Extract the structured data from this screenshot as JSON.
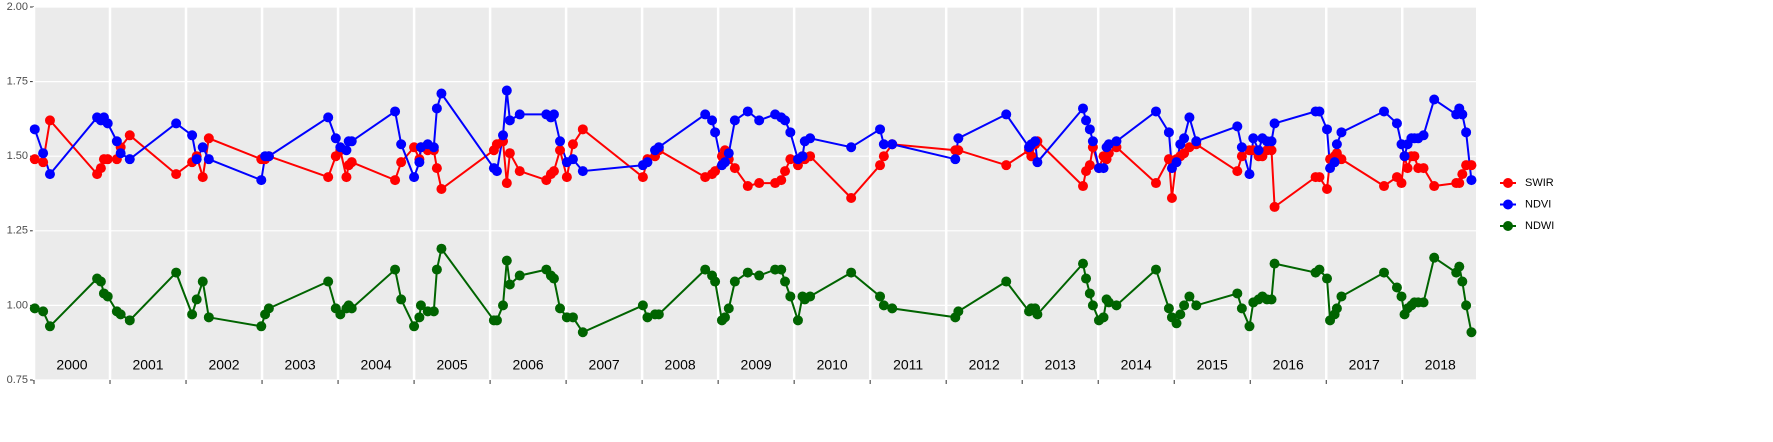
{
  "chart_data": {
    "type": "line",
    "x": [
      2000.01,
      2000.12,
      2000.21,
      2000.83,
      2000.88,
      2000.92,
      2000.97,
      2001.09,
      2001.14,
      2001.26,
      2001.87,
      2002.08,
      2002.14,
      2002.22,
      2002.3,
      2002.99,
      2003.04,
      2003.09,
      2003.87,
      2003.97,
      2004.03,
      2004.11,
      2004.14,
      2004.18,
      2004.75,
      2004.83,
      2005.0,
      2005.07,
      2005.09,
      2005.18,
      2005.26,
      2005.3,
      2005.36,
      2006.05,
      2006.09,
      2006.17,
      2006.22,
      2006.26,
      2006.39,
      2006.74,
      2006.8,
      2006.84,
      2006.92,
      2007.01,
      2007.09,
      2007.22,
      2008.01,
      2008.07,
      2008.17,
      2008.22,
      2008.83,
      2008.92,
      2008.96,
      2009.05,
      2009.09,
      2009.14,
      2009.22,
      2009.39,
      2009.54,
      2009.75,
      2009.83,
      2009.88,
      2009.95,
      2010.05,
      2010.11,
      2010.14,
      2010.21,
      2010.75,
      2011.13,
      2011.18,
      2011.29,
      2012.12,
      2012.16,
      2012.79,
      2013.09,
      2013.12,
      2013.17,
      2013.2,
      2013.8,
      2013.84,
      2013.89,
      2013.93,
      2014.01,
      2014.07,
      2014.11,
      2014.14,
      2014.24,
      2014.76,
      2014.93,
      2014.97,
      2015.03,
      2015.08,
      2015.13,
      2015.2,
      2015.29,
      2015.83,
      2015.89,
      2015.99,
      2016.04,
      2016.11,
      2016.16,
      2016.22,
      2016.28,
      2016.32,
      2016.86,
      2016.91,
      2017.01,
      2017.05,
      2017.11,
      2017.14,
      2017.2,
      2017.76,
      2017.93,
      2017.99,
      2018.03,
      2018.07,
      2018.12,
      2018.16,
      2018.21,
      2018.28,
      2018.42,
      2018.71,
      2018.75,
      2018.79,
      2018.84,
      2018.91
    ],
    "series": [
      {
        "name": "SWIR",
        "color": "#ff0000",
        "values": [
          1.49,
          1.48,
          1.62,
          1.44,
          1.46,
          1.49,
          1.49,
          1.49,
          1.53,
          1.57,
          1.44,
          1.48,
          1.5,
          1.43,
          1.56,
          1.49,
          1.49,
          1.5,
          1.43,
          1.5,
          1.52,
          1.43,
          1.47,
          1.48,
          1.42,
          1.48,
          1.53,
          1.49,
          1.53,
          1.52,
          1.52,
          1.46,
          1.39,
          1.52,
          1.54,
          1.55,
          1.41,
          1.51,
          1.45,
          1.42,
          1.44,
          1.45,
          1.52,
          1.43,
          1.54,
          1.59,
          1.43,
          1.49,
          1.5,
          1.52,
          1.43,
          1.44,
          1.45,
          1.5,
          1.52,
          1.49,
          1.46,
          1.4,
          1.41,
          1.41,
          1.42,
          1.45,
          1.49,
          1.47,
          1.5,
          1.49,
          1.5,
          1.36,
          1.47,
          1.5,
          1.54,
          1.52,
          1.52,
          1.47,
          1.52,
          1.5,
          1.54,
          1.55,
          1.4,
          1.45,
          1.47,
          1.53,
          1.46,
          1.5,
          1.49,
          1.51,
          1.53,
          1.41,
          1.49,
          1.36,
          1.49,
          1.5,
          1.51,
          1.53,
          1.54,
          1.45,
          1.5,
          1.52,
          1.52,
          1.5,
          1.5,
          1.52,
          1.52,
          1.33,
          1.43,
          1.43,
          1.39,
          1.49,
          1.5,
          1.51,
          1.49,
          1.4,
          1.43,
          1.41,
          1.5,
          1.46,
          1.5,
          1.5,
          1.46,
          1.46,
          1.4,
          1.41,
          1.41,
          1.44,
          1.47,
          1.47
        ]
      },
      {
        "name": "NDVI",
        "color": "#0000ff",
        "values": [
          1.59,
          1.51,
          1.44,
          1.63,
          1.62,
          1.63,
          1.61,
          1.55,
          1.51,
          1.49,
          1.61,
          1.57,
          1.49,
          1.53,
          1.49,
          1.42,
          1.5,
          1.5,
          1.63,
          1.56,
          1.53,
          1.52,
          1.55,
          1.55,
          1.65,
          1.54,
          1.43,
          1.48,
          1.53,
          1.54,
          1.53,
          1.66,
          1.71,
          1.46,
          1.45,
          1.57,
          1.72,
          1.62,
          1.64,
          1.64,
          1.63,
          1.64,
          1.55,
          1.48,
          1.49,
          1.45,
          1.47,
          1.48,
          1.52,
          1.53,
          1.64,
          1.62,
          1.58,
          1.47,
          1.48,
          1.51,
          1.62,
          1.65,
          1.62,
          1.64,
          1.63,
          1.62,
          1.58,
          1.49,
          1.5,
          1.55,
          1.56,
          1.53,
          1.59,
          1.54,
          1.54,
          1.49,
          1.56,
          1.64,
          1.53,
          1.54,
          1.55,
          1.48,
          1.66,
          1.62,
          1.59,
          1.55,
          1.46,
          1.46,
          1.53,
          1.54,
          1.55,
          1.65,
          1.58,
          1.46,
          1.48,
          1.54,
          1.56,
          1.63,
          1.55,
          1.6,
          1.53,
          1.44,
          1.56,
          1.52,
          1.56,
          1.55,
          1.55,
          1.61,
          1.65,
          1.65,
          1.59,
          1.46,
          1.48,
          1.54,
          1.58,
          1.65,
          1.61,
          1.54,
          1.5,
          1.54,
          1.56,
          1.56,
          1.56,
          1.57,
          1.69,
          1.64,
          1.66,
          1.64,
          1.58,
          1.42
        ]
      },
      {
        "name": "NDWI",
        "color": "#006400",
        "values": [
          0.99,
          0.98,
          0.93,
          1.09,
          1.08,
          1.04,
          1.03,
          0.98,
          0.97,
          0.95,
          1.11,
          0.97,
          1.02,
          1.08,
          0.96,
          0.93,
          0.97,
          0.99,
          1.08,
          0.99,
          0.97,
          0.99,
          1.0,
          0.99,
          1.12,
          1.02,
          0.93,
          0.96,
          1.0,
          0.98,
          0.98,
          1.12,
          1.19,
          0.95,
          0.95,
          1.0,
          1.15,
          1.07,
          1.1,
          1.12,
          1.1,
          1.09,
          0.99,
          0.96,
          0.96,
          0.91,
          1.0,
          0.96,
          0.97,
          0.97,
          1.12,
          1.1,
          1.08,
          0.95,
          0.96,
          0.99,
          1.08,
          1.11,
          1.1,
          1.12,
          1.12,
          1.08,
          1.03,
          0.95,
          1.03,
          1.02,
          1.03,
          1.11,
          1.03,
          1.0,
          0.99,
          0.96,
          0.98,
          1.08,
          0.98,
          0.99,
          0.99,
          0.97,
          1.14,
          1.09,
          1.04,
          1.0,
          0.95,
          0.96,
          1.02,
          1.01,
          1.0,
          1.12,
          0.99,
          0.96,
          0.94,
          0.97,
          1.0,
          1.03,
          1.0,
          1.04,
          0.99,
          0.93,
          1.01,
          1.02,
          1.03,
          1.02,
          1.02,
          1.14,
          1.11,
          1.12,
          1.09,
          0.95,
          0.97,
          0.99,
          1.03,
          1.11,
          1.06,
          1.03,
          0.97,
          0.99,
          1.0,
          1.01,
          1.01,
          1.01,
          1.16,
          1.11,
          1.13,
          1.08,
          1.0,
          0.91
        ]
      }
    ],
    "xlim": [
      2000,
      2018.97
    ],
    "xticks": [
      2000,
      2001,
      2002,
      2003,
      2004,
      2005,
      2006,
      2007,
      2008,
      2009,
      2010,
      2011,
      2012,
      2013,
      2014,
      2015,
      2016,
      2017,
      2018
    ],
    "ylim": [
      0.75,
      2.0
    ],
    "yticks": [
      0.75,
      {
        "value": 1,
        "label": "1.00"
      },
      1.25,
      {
        "value": 1.5,
        "label": "1.50"
      },
      1.75,
      {
        "value": 2,
        "label": "2.00"
      }
    ],
    "grid": true,
    "legend": "right"
  }
}
